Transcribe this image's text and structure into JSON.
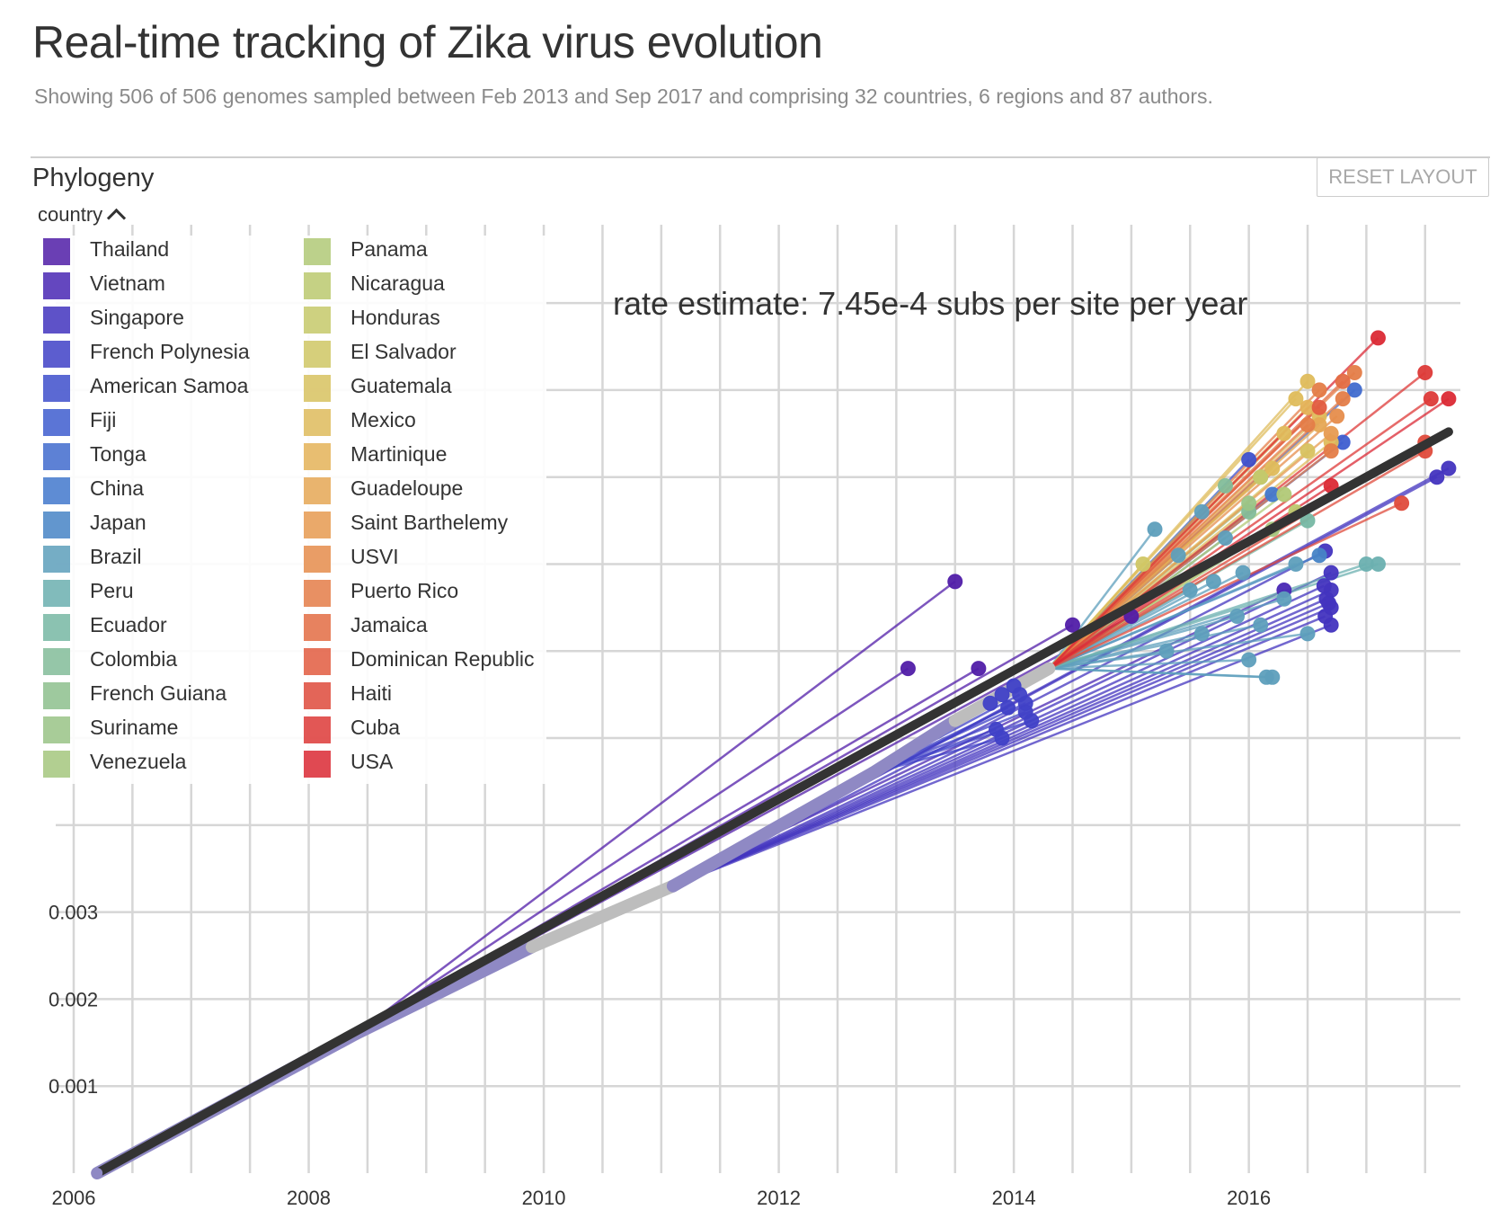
{
  "header": {
    "title": "Real-time tracking of Zika virus evolution",
    "subtitle": "Showing 506 of 506 genomes sampled between Feb 2013 and Sep 2017 and comprising 32 countries, 6 regions and 87 authors."
  },
  "panel": {
    "title": "Phylogeny",
    "reset_label": "RESET LAYOUT",
    "legend_toggle_label": "country"
  },
  "legend": {
    "items": [
      {
        "label": "Thailand",
        "color": "#511EA8"
      },
      {
        "label": "Vietnam",
        "color": "#4928B4"
      },
      {
        "label": "Singapore",
        "color": "#4334BF"
      },
      {
        "label": "French Polynesia",
        "color": "#4041C7"
      },
      {
        "label": "American Samoa",
        "color": "#3F50CC"
      },
      {
        "label": "Fiji",
        "color": "#3F5ED0"
      },
      {
        "label": "Tonga",
        "color": "#416CCE"
      },
      {
        "label": "China",
        "color": "#4379CD"
      },
      {
        "label": "Japan",
        "color": "#4784C6"
      },
      {
        "label": "Brazil",
        "color": "#5E9FBC"
      },
      {
        "label": "Peru",
        "color": "#6CB0B0"
      },
      {
        "label": "Ecuador",
        "color": "#77B8A4"
      },
      {
        "label": "Colombia",
        "color": "#83BD9A"
      },
      {
        "label": "French Guiana",
        "color": "#8EC08E"
      },
      {
        "label": "Suriname",
        "color": "#9AC487"
      },
      {
        "label": "Venezuela",
        "color": "#A5C77E"
      },
      {
        "label": "Panama",
        "color": "#B1C977"
      },
      {
        "label": "Nicaragua",
        "color": "#BCC96F"
      },
      {
        "label": "Honduras",
        "color": "#C6C96A"
      },
      {
        "label": "El Salvador",
        "color": "#D0C765"
      },
      {
        "label": "Guatemala",
        "color": "#D8C260"
      },
      {
        "label": "Mexico",
        "color": "#DFBC5C"
      },
      {
        "label": "Martinique",
        "color": "#E4B359"
      },
      {
        "label": "Guadeloupe",
        "color": "#E6A855"
      },
      {
        "label": "Saint Barthelemy",
        "color": "#E79B51"
      },
      {
        "label": "USVI",
        "color": "#E68D4C"
      },
      {
        "label": "Puerto Rico",
        "color": "#E47D48"
      },
      {
        "label": "Jamaica",
        "color": "#E36D44"
      },
      {
        "label": "Dominican Republic",
        "color": "#E25C40"
      },
      {
        "label": "Haiti",
        "color": "#DF4B3C"
      },
      {
        "label": "Cuba",
        "color": "#DD3A38"
      },
      {
        "label": "USA",
        "color": "#DB2A35"
      }
    ]
  },
  "chart_data": {
    "type": "scatter",
    "title": "rate estimate: 7.45e-4 subs per site per year",
    "xlabel": "",
    "ylabel": "",
    "xlim": [
      2006,
      2017.8
    ],
    "ylim": [
      0,
      0.0109
    ],
    "x_ticks": [
      2006,
      2008,
      2010,
      2012,
      2014,
      2016
    ],
    "x_tick_labels": [
      "2006",
      "2008",
      "2010",
      "2012",
      "2014",
      "2016"
    ],
    "y_ticks": [
      0.001,
      0.002,
      0.003
    ],
    "y_tick_labels": [
      "0.001",
      "0.002",
      "0.003"
    ],
    "regression": {
      "x0": 2006.2,
      "y0": 0.0,
      "x1": 2017.7,
      "y1": 0.00852
    },
    "root": {
      "x": 2006.2,
      "y": 0.0
    },
    "backbone": [
      {
        "x0": 2006.2,
        "y0": 0.0,
        "x1": 2008.4,
        "y1": 0.0016,
        "color": "#8F89C4"
      },
      {
        "x0": 2008.4,
        "y0": 0.0016,
        "x1": 2009.9,
        "y1": 0.0026,
        "color": "#8F89C4"
      },
      {
        "x0": 2009.9,
        "y0": 0.0026,
        "x1": 2011.1,
        "y1": 0.0033,
        "color": "#BDBDBD"
      },
      {
        "x0": 2011.1,
        "y0": 0.0033,
        "x1": 2012.8,
        "y1": 0.0046,
        "color": "#8F89C4"
      },
      {
        "x0": 2012.8,
        "y0": 0.0046,
        "x1": 2013.5,
        "y1": 0.0052,
        "color": "#8F89C4"
      },
      {
        "x0": 2013.5,
        "y0": 0.0052,
        "x1": 2014.3,
        "y1": 0.0058,
        "color": "#BDBDBD"
      }
    ],
    "points": [
      {
        "country": "Thailand",
        "x": 2013.5,
        "y": 0.0068
      },
      {
        "country": "Thailand",
        "x": 2013.1,
        "y": 0.0058
      },
      {
        "country": "Thailand",
        "x": 2013.7,
        "y": 0.0058
      },
      {
        "country": "Thailand",
        "x": 2014.5,
        "y": 0.0063
      },
      {
        "country": "Thailand",
        "x": 2015.0,
        "y": 0.0064
      },
      {
        "country": "Vietnam",
        "x": 2016.3,
        "y": 0.0067
      },
      {
        "country": "Singapore",
        "x": 2016.7,
        "y": 0.0063
      },
      {
        "country": "Singapore",
        "x": 2016.65,
        "y": 0.0064
      },
      {
        "country": "Singapore",
        "x": 2016.68,
        "y": 0.00655
      },
      {
        "country": "Singapore",
        "x": 2016.7,
        "y": 0.0065
      },
      {
        "country": "Singapore",
        "x": 2016.66,
        "y": 0.0066
      },
      {
        "country": "Singapore",
        "x": 2016.7,
        "y": 0.0067
      },
      {
        "country": "Singapore",
        "x": 2016.64,
        "y": 0.00675
      },
      {
        "country": "Singapore",
        "x": 2016.7,
        "y": 0.0069
      },
      {
        "country": "Singapore",
        "x": 2016.65,
        "y": 0.00715
      },
      {
        "country": "Singapore",
        "x": 2017.7,
        "y": 0.0081
      },
      {
        "country": "Singapore",
        "x": 2017.6,
        "y": 0.008
      },
      {
        "country": "French Polynesia",
        "x": 2013.8,
        "y": 0.0054
      },
      {
        "country": "French Polynesia",
        "x": 2013.9,
        "y": 0.0055
      },
      {
        "country": "French Polynesia",
        "x": 2014.0,
        "y": 0.0056
      },
      {
        "country": "French Polynesia",
        "x": 2014.1,
        "y": 0.0054
      },
      {
        "country": "French Polynesia",
        "x": 2013.95,
        "y": 0.00535
      },
      {
        "country": "French Polynesia",
        "x": 2014.05,
        "y": 0.0055
      },
      {
        "country": "French Polynesia",
        "x": 2014.15,
        "y": 0.0052
      },
      {
        "country": "French Polynesia",
        "x": 2013.85,
        "y": 0.0051
      },
      {
        "country": "French Polynesia",
        "x": 2013.9,
        "y": 0.005
      },
      {
        "country": "French Polynesia",
        "x": 2014.1,
        "y": 0.0053
      },
      {
        "country": "American Samoa",
        "x": 2016.0,
        "y": 0.0082
      },
      {
        "country": "Fiji",
        "x": 2016.8,
        "y": 0.0084
      },
      {
        "country": "Tonga",
        "x": 2016.9,
        "y": 0.009
      },
      {
        "country": "China",
        "x": 2016.2,
        "y": 0.0078
      },
      {
        "country": "Japan",
        "x": 2016.6,
        "y": 0.0071
      },
      {
        "country": "Brazil",
        "x": 2015.5,
        "y": 0.0067
      },
      {
        "country": "Brazil",
        "x": 2015.3,
        "y": 0.006
      },
      {
        "country": "Brazil",
        "x": 2015.6,
        "y": 0.0062
      },
      {
        "country": "Brazil",
        "x": 2015.4,
        "y": 0.0071
      },
      {
        "country": "Brazil",
        "x": 2015.7,
        "y": 0.0068
      },
      {
        "country": "Brazil",
        "x": 2015.8,
        "y": 0.0073
      },
      {
        "country": "Brazil",
        "x": 2016.0,
        "y": 0.0059
      },
      {
        "country": "Brazil",
        "x": 2016.2,
        "y": 0.0057
      },
      {
        "country": "Brazil",
        "x": 2016.15,
        "y": 0.0057
      },
      {
        "country": "Brazil",
        "x": 2016.1,
        "y": 0.0063
      },
      {
        "country": "Brazil",
        "x": 2016.3,
        "y": 0.0066
      },
      {
        "country": "Brazil",
        "x": 2015.9,
        "y": 0.0064
      },
      {
        "country": "Brazil",
        "x": 2015.2,
        "y": 0.0074
      },
      {
        "country": "Brazil",
        "x": 2015.6,
        "y": 0.0076
      },
      {
        "country": "Brazil",
        "x": 2016.4,
        "y": 0.007
      },
      {
        "country": "Brazil",
        "x": 2016.5,
        "y": 0.0062
      },
      {
        "country": "Brazil",
        "x": 2015.95,
        "y": 0.0069
      },
      {
        "country": "Peru",
        "x": 2017.0,
        "y": 0.007
      },
      {
        "country": "Peru",
        "x": 2017.1,
        "y": 0.007
      },
      {
        "country": "Ecuador",
        "x": 2016.5,
        "y": 0.0075
      },
      {
        "country": "Colombia",
        "x": 2015.8,
        "y": 0.0079
      },
      {
        "country": "Colombia",
        "x": 2016.0,
        "y": 0.0076
      },
      {
        "country": "French Guiana",
        "x": 2016.1,
        "y": 0.008
      },
      {
        "country": "Suriname",
        "x": 2016.0,
        "y": 0.0077
      },
      {
        "country": "Venezuela",
        "x": 2016.2,
        "y": 0.0074
      },
      {
        "country": "Panama",
        "x": 2016.3,
        "y": 0.0078
      },
      {
        "country": "Nicaragua",
        "x": 2016.4,
        "y": 0.0076
      },
      {
        "country": "Honduras",
        "x": 2016.1,
        "y": 0.008
      },
      {
        "country": "El Salvador",
        "x": 2015.1,
        "y": 0.007
      },
      {
        "country": "Guatemala",
        "x": 2016.5,
        "y": 0.0083
      },
      {
        "country": "Mexico",
        "x": 2016.5,
        "y": 0.0091
      },
      {
        "country": "Mexico",
        "x": 2016.3,
        "y": 0.0085
      },
      {
        "country": "Mexico",
        "x": 2016.6,
        "y": 0.0087
      },
      {
        "country": "Mexico",
        "x": 2016.2,
        "y": 0.0081
      },
      {
        "country": "Mexico",
        "x": 2016.4,
        "y": 0.0089
      },
      {
        "country": "Mexico",
        "x": 2016.7,
        "y": 0.0084
      },
      {
        "country": "Martinique",
        "x": 2016.5,
        "y": 0.0088
      },
      {
        "country": "Guadeloupe",
        "x": 2016.6,
        "y": 0.0086
      },
      {
        "country": "Saint Barthelemy",
        "x": 2016.7,
        "y": 0.0085
      },
      {
        "country": "USVI",
        "x": 2016.75,
        "y": 0.0087
      },
      {
        "country": "Puerto Rico",
        "x": 2016.6,
        "y": 0.009
      },
      {
        "country": "Puerto Rico",
        "x": 2016.8,
        "y": 0.0089
      },
      {
        "country": "Puerto Rico",
        "x": 2016.5,
        "y": 0.0086
      },
      {
        "country": "Puerto Rico",
        "x": 2016.7,
        "y": 0.0083
      },
      {
        "country": "Puerto Rico",
        "x": 2016.9,
        "y": 0.0092
      },
      {
        "country": "Jamaica",
        "x": 2016.8,
        "y": 0.0091
      },
      {
        "country": "Dominican Republic",
        "x": 2016.6,
        "y": 0.0088
      },
      {
        "country": "Haiti",
        "x": 2017.5,
        "y": 0.0083
      },
      {
        "country": "Haiti",
        "x": 2017.5,
        "y": 0.0084
      },
      {
        "country": "Haiti",
        "x": 2017.3,
        "y": 0.0077
      },
      {
        "country": "Cuba",
        "x": 2017.5,
        "y": 0.0092
      },
      {
        "country": "Cuba",
        "x": 2017.55,
        "y": 0.0089
      },
      {
        "country": "USA",
        "x": 2017.1,
        "y": 0.0096
      },
      {
        "country": "USA",
        "x": 2017.7,
        "y": 0.0089
      },
      {
        "country": "USA",
        "x": 2016.7,
        "y": 0.0079
      }
    ]
  }
}
